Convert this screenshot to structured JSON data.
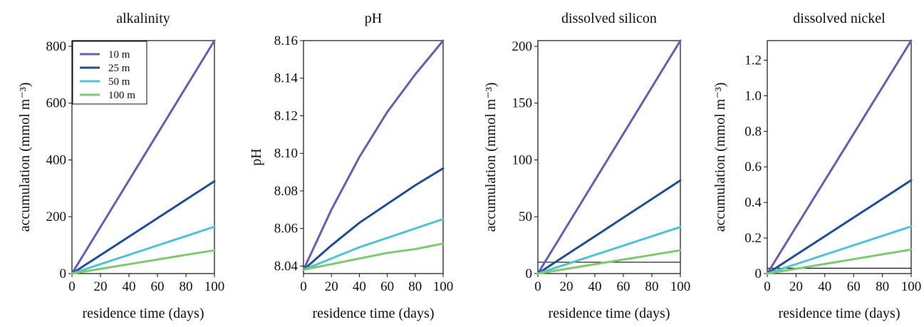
{
  "figure": {
    "legend": [
      {
        "name": "10 m",
        "color": "#6a5bb5"
      },
      {
        "name": "25 m",
        "color": "#1f4e96"
      },
      {
        "name": "50 m",
        "color": "#4fc3d4"
      },
      {
        "name": "100 m",
        "color": "#7ec86f"
      }
    ]
  },
  "chart_data": [
    {
      "type": "line",
      "title": "alkalinity",
      "xlabel": "residence time (days)",
      "ylabel": "accumulation (mmol m⁻³)",
      "xlim": [
        0,
        100
      ],
      "ylim": [
        0,
        820
      ],
      "xticks": [
        0,
        20,
        40,
        60,
        80,
        100
      ],
      "yticks": [
        0,
        200,
        400,
        600,
        800
      ],
      "legend_position": "top-left",
      "series": [
        {
          "name": "10 m",
          "color": "#6a5bb5",
          "x": [
            0,
            20,
            40,
            60,
            80,
            100
          ],
          "y": [
            0,
            164,
            328,
            492,
            656,
            820
          ]
        },
        {
          "name": "25 m",
          "color": "#1f4e96",
          "x": [
            0,
            20,
            40,
            60,
            80,
            100
          ],
          "y": [
            0,
            65,
            130,
            195,
            260,
            325
          ]
        },
        {
          "name": "50 m",
          "color": "#4fc3d4",
          "x": [
            0,
            20,
            40,
            60,
            80,
            100
          ],
          "y": [
            0,
            33,
            66,
            99,
            132,
            165
          ]
        },
        {
          "name": "100 m",
          "color": "#7ec86f",
          "x": [
            0,
            20,
            40,
            60,
            80,
            100
          ],
          "y": [
            0,
            16.5,
            33,
            49.5,
            66,
            82
          ]
        }
      ]
    },
    {
      "type": "line",
      "title": "pH",
      "xlabel": "residence time (days)",
      "ylabel": "pH",
      "xlim": [
        0,
        100
      ],
      "ylim": [
        8.036,
        8.16
      ],
      "xticks": [
        0,
        20,
        40,
        60,
        80,
        100
      ],
      "yticks": [
        "8.04",
        "8.06",
        "8.08",
        "8.10",
        "8.12",
        "8.14",
        "8.16"
      ],
      "series": [
        {
          "name": "10 m",
          "color": "#6a5bb5",
          "x": [
            0,
            20,
            40,
            60,
            80,
            100
          ],
          "y": [
            8.038,
            8.07,
            8.098,
            8.122,
            8.142,
            8.16
          ]
        },
        {
          "name": "25 m",
          "color": "#1f4e96",
          "x": [
            0,
            20,
            40,
            60,
            80,
            100
          ],
          "y": [
            8.038,
            8.051,
            8.063,
            8.073,
            8.083,
            8.092
          ]
        },
        {
          "name": "50 m",
          "color": "#4fc3d4",
          "x": [
            0,
            20,
            40,
            60,
            80,
            100
          ],
          "y": [
            8.038,
            8.044,
            8.05,
            8.055,
            8.06,
            8.065
          ]
        },
        {
          "name": "100 m",
          "color": "#7ec86f",
          "x": [
            0,
            20,
            40,
            60,
            80,
            100
          ],
          "y": [
            8.038,
            8.041,
            8.044,
            8.047,
            8.049,
            8.052
          ]
        }
      ]
    },
    {
      "type": "line",
      "title": "dissolved silicon",
      "xlabel": "residence time (days)",
      "ylabel": "accumulation (mmol m⁻³)",
      "xlim": [
        0,
        100
      ],
      "ylim": [
        0,
        205
      ],
      "xticks": [
        0,
        20,
        40,
        60,
        80,
        100
      ],
      "yticks": [
        0,
        50,
        100,
        150,
        200
      ],
      "reference_line": 10,
      "series": [
        {
          "name": "10 m",
          "color": "#6a5bb5",
          "x": [
            0,
            20,
            40,
            60,
            80,
            100
          ],
          "y": [
            0,
            41,
            82,
            123,
            164,
            205
          ]
        },
        {
          "name": "25 m",
          "color": "#1f4e96",
          "x": [
            0,
            20,
            40,
            60,
            80,
            100
          ],
          "y": [
            0,
            16.4,
            32.8,
            49.2,
            65.6,
            82
          ]
        },
        {
          "name": "50 m",
          "color": "#4fc3d4",
          "x": [
            0,
            20,
            40,
            60,
            80,
            100
          ],
          "y": [
            0,
            8.2,
            16.4,
            24.6,
            32.8,
            41
          ]
        },
        {
          "name": "100 m",
          "color": "#7ec86f",
          "x": [
            0,
            20,
            40,
            60,
            80,
            100
          ],
          "y": [
            0,
            4.1,
            8.2,
            12.3,
            16.4,
            20.5
          ]
        }
      ]
    },
    {
      "type": "line",
      "title": "dissolved nickel",
      "xlabel": "residence time (days)",
      "ylabel": "accumulation (mmol m⁻³)",
      "xlim": [
        0,
        100
      ],
      "ylim": [
        0,
        1.31
      ],
      "xticks": [
        0,
        20,
        40,
        60,
        80,
        100
      ],
      "yticks": [
        "0",
        "0.2",
        "0.4",
        "0.6",
        "0.8",
        "1.0",
        "1.2"
      ],
      "reference_line": 0.03,
      "series": [
        {
          "name": "10 m",
          "color": "#6a5bb5",
          "x": [
            0,
            20,
            40,
            60,
            80,
            100
          ],
          "y": [
            0,
            0.262,
            0.524,
            0.786,
            1.048,
            1.31
          ]
        },
        {
          "name": "25 m",
          "color": "#1f4e96",
          "x": [
            0,
            20,
            40,
            60,
            80,
            100
          ],
          "y": [
            0,
            0.105,
            0.21,
            0.315,
            0.42,
            0.525
          ]
        },
        {
          "name": "50 m",
          "color": "#4fc3d4",
          "x": [
            0,
            20,
            40,
            60,
            80,
            100
          ],
          "y": [
            0,
            0.053,
            0.106,
            0.159,
            0.212,
            0.265
          ]
        },
        {
          "name": "100 m",
          "color": "#7ec86f",
          "x": [
            0,
            20,
            40,
            60,
            80,
            100
          ],
          "y": [
            0,
            0.027,
            0.054,
            0.081,
            0.108,
            0.135
          ]
        }
      ]
    }
  ]
}
